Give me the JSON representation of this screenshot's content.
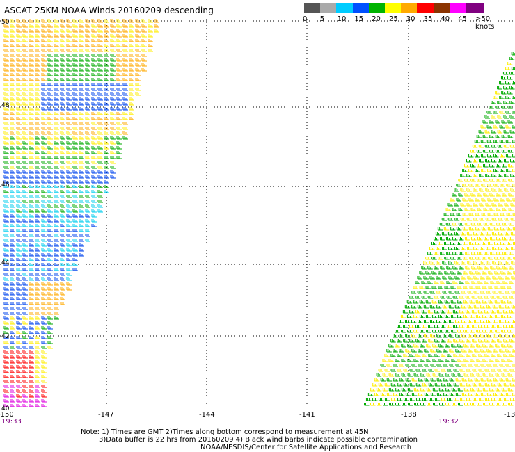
{
  "title": "ASCAT 25KM NOAA Winds 20160209 descending",
  "speed_scale": {
    "swatches": [
      {
        "label": "0",
        "color": "#555555"
      },
      {
        "label": "5",
        "color": "#aaaaaa"
      },
      {
        "label": "10",
        "color": "#00ccff"
      },
      {
        "label": "15",
        "color": "#0050ff"
      },
      {
        "label": "20",
        "color": "#00b400"
      },
      {
        "label": "25",
        "color": "#ffff00"
      },
      {
        "label": "30",
        "color": "#ffaa00"
      },
      {
        "label": "35",
        "color": "#ff0000"
      },
      {
        "label": "40",
        "color": "#8b3300"
      },
      {
        "label": "45",
        "color": "#ff00ff"
      },
      {
        "label": ">50 knots",
        "color": "#800080"
      }
    ]
  },
  "map": {
    "lat_labels": [
      "50",
      "48",
      "46",
      "44",
      "42",
      "40"
    ],
    "lon_labels": [
      "-150",
      "-147",
      "-144",
      "-141",
      "-138",
      "-13"
    ],
    "pass_times": [
      "19:33",
      "19:32"
    ],
    "time_color": "#800080"
  },
  "notes": {
    "line1": "Note: 1) Times are GMT 2)Times along bottom correspond to measurement at 45N",
    "line2": "3)Data buffer is 22 hrs from 20160209 4) Black wind barbs indicate possible contamination",
    "line3": "NOAA/NESDIS/Center for Satellite Applications and Research"
  },
  "colors": {
    "green": "#00aa00",
    "yellow": "#ffee00",
    "orange": "#ffaa00",
    "blue": "#0044ee",
    "cyan": "#00ccee",
    "red": "#ff0000",
    "magenta": "#dd00dd",
    "darkred": "#a02000"
  }
}
